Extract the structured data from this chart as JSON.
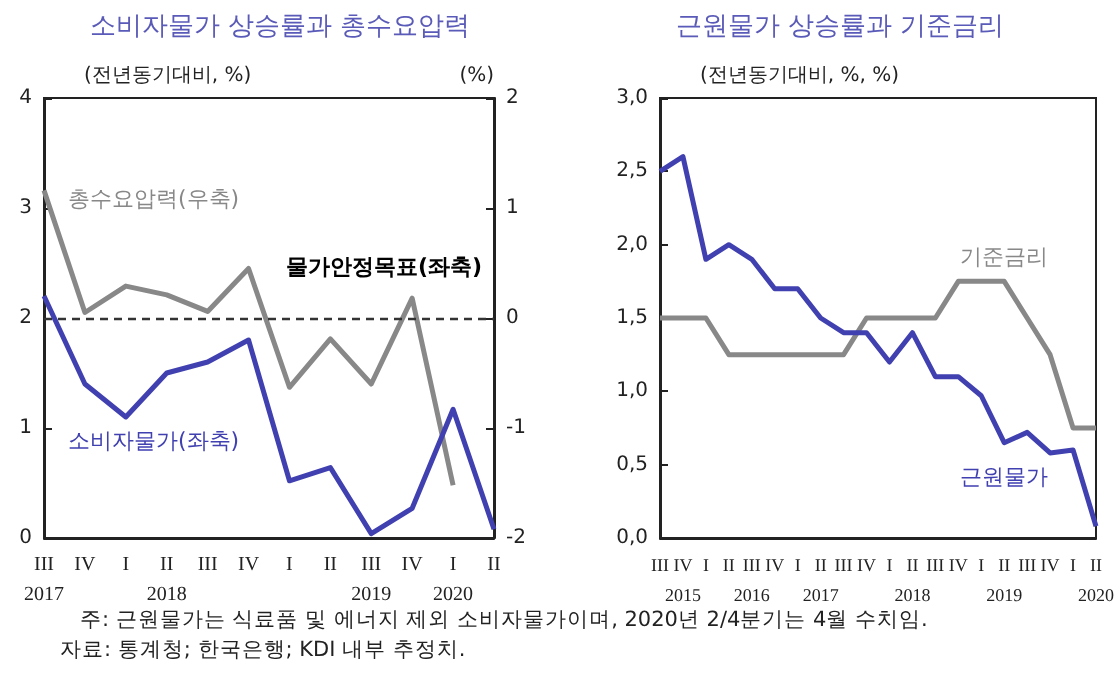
{
  "chart_data": [
    {
      "type": "line",
      "title": "소비자물가 상승률과 총수요압력",
      "ylabel": "(전년동기대비, %)",
      "y2label": "(%)",
      "categories": [
        "III\n2017",
        "IV",
        "I",
        "II\n2018",
        "III",
        "IV",
        "I",
        "II",
        "III\n2019",
        "IV",
        "I\n2020",
        "II"
      ],
      "series": [
        {
          "name": "총수요압력(우축)",
          "color": "#888888",
          "axis": "y2",
          "values": [
            1.16,
            0.05,
            0.29,
            0.21,
            0.06,
            0.45,
            -0.63,
            -0.19,
            -0.6,
            0.18,
            -1.52,
            null
          ]
        },
        {
          "name": "소비자물가(좌축)",
          "color": "#4040b0",
          "values": [
            2.2,
            1.4,
            1.1,
            1.5,
            1.6,
            1.8,
            0.52,
            0.64,
            0.04,
            0.27,
            1.17,
            0.08
          ]
        }
      ],
      "ylim": [
        0,
        4
      ],
      "yticks": [
        0,
        1,
        2,
        3,
        4
      ],
      "y2lim": [
        -2,
        2
      ],
      "y2ticks": [
        -2,
        -1,
        0,
        1,
        2
      ],
      "ref_lines": [
        {
          "axis": "y",
          "value": 2,
          "label": "물가안정목표(좌축)",
          "color": "#333333",
          "line_style": "dashed"
        }
      ],
      "annotations": [
        "주: 근원물가는 식료품 및 에너지 제외 소비자물가이며, 2020년 2/4분기는 4월 수치임.",
        "자료: 통계청; 한국은행; KDI 내부 추정치."
      ],
      "grid": false,
      "legend": false
    },
    {
      "type": "line",
      "title": "근원물가 상승률과 기준금리",
      "ylabel": "(전년동기대비, %, %)",
      "categories": [
        "III",
        "IV\n2015",
        "I",
        "II",
        "III\n2016",
        "IV",
        "I",
        "II\n2017",
        "III",
        "IV",
        "I",
        "II\n2018",
        "III",
        "IV",
        "I",
        "II\n2019",
        "III",
        "IV",
        "I",
        "II\n2020"
      ],
      "series": [
        {
          "name": "기준금리",
          "color": "#888888",
          "values": [
            1.5,
            1.5,
            1.5,
            1.25,
            1.25,
            1.25,
            1.25,
            1.25,
            1.25,
            1.5,
            1.5,
            1.5,
            1.5,
            1.75,
            1.75,
            1.75,
            1.5,
            1.25,
            0.75,
            0.75
          ]
        },
        {
          "name": "근원물가",
          "color": "#4040b0",
          "values": [
            2.5,
            2.6,
            1.9,
            2.0,
            1.9,
            1.7,
            1.7,
            1.5,
            1.4,
            1.4,
            1.2,
            1.4,
            1.1,
            1.1,
            0.97,
            0.65,
            0.72,
            0.58,
            0.6,
            0.08
          ]
        }
      ],
      "ylim": [
        0,
        3
      ],
      "yticks": [
        {
          "value": 0,
          "label": "0,0"
        },
        {
          "value": 0.5,
          "label": "0,5"
        },
        {
          "value": 1,
          "label": "1,0"
        },
        {
          "value": 1.5,
          "label": "1,5"
        },
        {
          "value": 2,
          "label": "2,0"
        },
        {
          "value": 2.5,
          "label": "2,5"
        },
        {
          "value": 3,
          "label": "3,0"
        }
      ],
      "grid": false,
      "legend": false
    }
  ]
}
